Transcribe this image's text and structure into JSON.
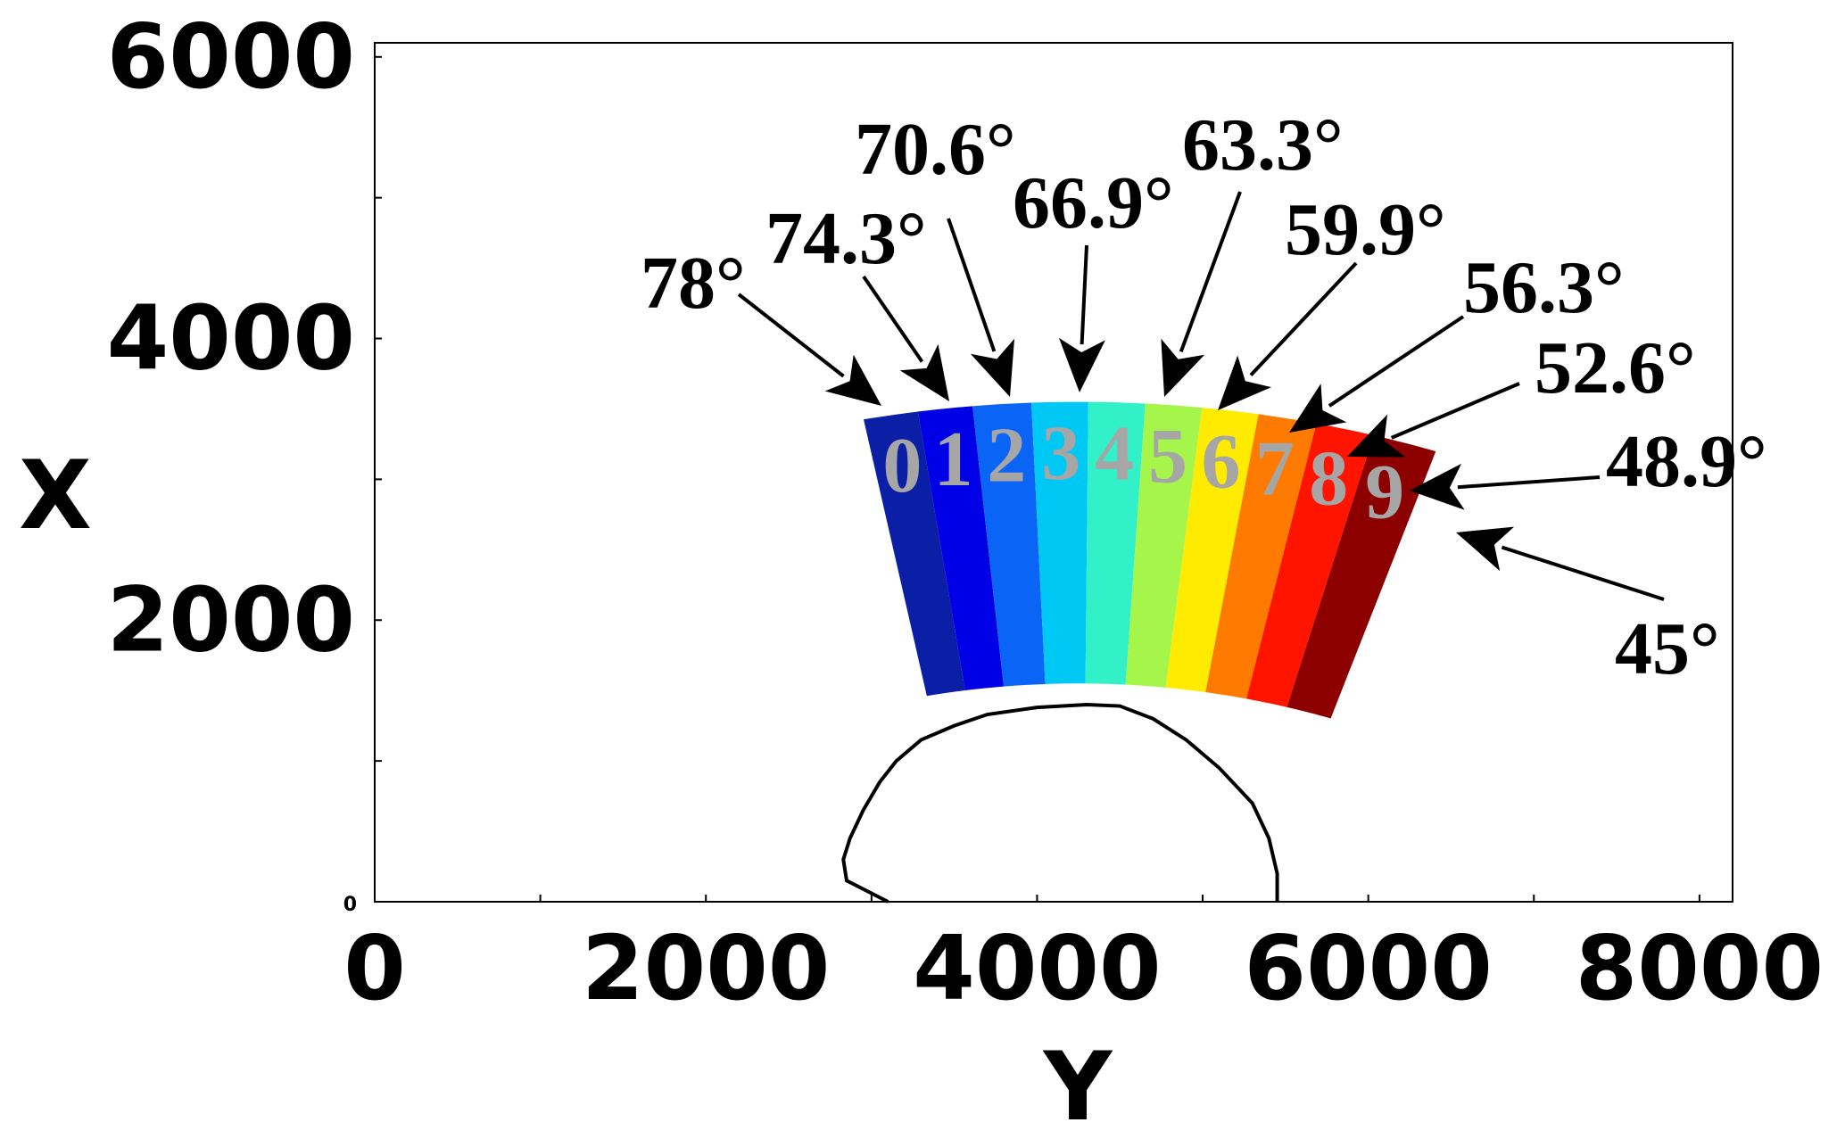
{
  "x_axis": {
    "title": "Y",
    "ticks": [
      0,
      2000,
      4000,
      6000,
      8000
    ],
    "range": [
      0,
      8200
    ]
  },
  "y_axis": {
    "title": "X",
    "ticks": [
      0,
      2000,
      4000,
      6000
    ],
    "range": [
      0,
      6100
    ]
  },
  "fan": {
    "center": [
      4250,
      -3250
    ],
    "inner_radius": 4800,
    "outer_radius": 6800,
    "sector_edges_deg": [
      101,
      98.2,
      95.4,
      92.4,
      89.5,
      86.6,
      83.7,
      80.8,
      77.8,
      74.8,
      71.5
    ],
    "colors": [
      "#0a1ea6",
      "#0000e6",
      "#0a64f5",
      "#00c8f5",
      "#32f0c8",
      "#a6f54a",
      "#ffeb00",
      "#ff7a00",
      "#ff1400",
      "#8c0000"
    ],
    "numbers": [
      "0",
      "1",
      "2",
      "3",
      "4",
      "5",
      "6",
      "7",
      "8",
      "9"
    ]
  },
  "angle_labels": [
    "78°",
    "74.3°",
    "70.6°",
    "66.9°",
    "63.3°",
    "59.9°",
    "56.3°",
    "52.6°",
    "48.9°",
    "45°"
  ],
  "outline": {
    "points": [
      [
        3100,
        0
      ],
      [
        2850,
        150
      ],
      [
        2830,
        300
      ],
      [
        2870,
        450
      ],
      [
        2950,
        650
      ],
      [
        3050,
        850
      ],
      [
        3150,
        1000
      ],
      [
        3300,
        1150
      ],
      [
        3500,
        1250
      ],
      [
        3700,
        1330
      ],
      [
        4000,
        1380
      ],
      [
        4300,
        1400
      ],
      [
        4500,
        1390
      ],
      [
        4700,
        1300
      ],
      [
        4900,
        1150
      ],
      [
        5100,
        950
      ],
      [
        5300,
        700
      ],
      [
        5400,
        450
      ],
      [
        5450,
        200
      ],
      [
        5450,
        0
      ]
    ]
  }
}
